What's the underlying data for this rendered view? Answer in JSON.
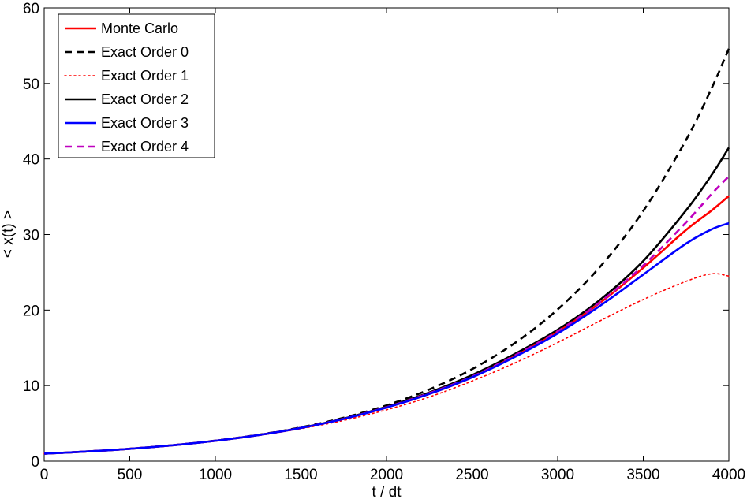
{
  "chart_data": {
    "type": "line",
    "title": "",
    "xlabel": "t / dt",
    "ylabel": "< x(t) >",
    "xlim": [
      0,
      4000
    ],
    "ylim": [
      0,
      60
    ],
    "xticks": [
      "0",
      "500",
      "1000",
      "1500",
      "2000",
      "2500",
      "3000",
      "3500",
      "4000"
    ],
    "yticks": [
      "0",
      "10",
      "20",
      "30",
      "40",
      "50",
      "60"
    ],
    "legend_position": "top-left",
    "grid": false,
    "x": [
      0,
      250,
      500,
      750,
      1000,
      1250,
      1500,
      1750,
      2000,
      2250,
      2500,
      2750,
      3000,
      3250,
      3500,
      3750,
      3900,
      4000
    ],
    "series": [
      {
        "name": "Monte Carlo",
        "color": "#ff0000",
        "style": "solid",
        "values": [
          1.0,
          1.28,
          1.64,
          2.11,
          2.7,
          3.45,
          4.4,
          5.6,
          7.1,
          8.9,
          11.1,
          13.9,
          17.1,
          21.0,
          25.6,
          30.6,
          33.2,
          35.1
        ]
      },
      {
        "name": "Exact Order 0",
        "color": "#000000",
        "style": "dashed",
        "values": [
          1.0,
          1.28,
          1.65,
          2.12,
          2.72,
          3.49,
          4.48,
          5.75,
          7.39,
          9.49,
          12.18,
          15.64,
          20.09,
          25.79,
          33.12,
          42.52,
          49.4,
          54.6
        ]
      },
      {
        "name": "Exact Order 1",
        "color": "#ff0000",
        "style": "dotted",
        "values": [
          1.0,
          1.28,
          1.64,
          2.1,
          2.68,
          3.4,
          4.3,
          5.4,
          6.8,
          8.5,
          10.6,
          13.0,
          15.7,
          18.6,
          21.4,
          23.8,
          24.8,
          24.5
        ]
      },
      {
        "name": "Exact Order 2",
        "color": "#000000",
        "style": "solid",
        "values": [
          1.0,
          1.28,
          1.64,
          2.11,
          2.7,
          3.45,
          4.42,
          5.64,
          7.2,
          9.1,
          11.4,
          14.2,
          17.4,
          21.4,
          26.5,
          33.2,
          37.9,
          41.5
        ]
      },
      {
        "name": "Exact Order 3",
        "color": "#0000ff",
        "style": "solid",
        "values": [
          1.0,
          1.28,
          1.64,
          2.11,
          2.7,
          3.45,
          4.4,
          5.6,
          7.1,
          8.9,
          11.1,
          13.8,
          16.9,
          20.6,
          24.7,
          28.8,
          30.7,
          31.5
        ]
      },
      {
        "name": "Exact Order 4",
        "color": "#bf00bf",
        "style": "dashed",
        "values": [
          1.0,
          1.28,
          1.64,
          2.11,
          2.7,
          3.45,
          4.41,
          5.62,
          7.15,
          9.0,
          11.2,
          14.0,
          17.2,
          21.1,
          25.9,
          31.6,
          35.4,
          37.7
        ]
      }
    ]
  }
}
